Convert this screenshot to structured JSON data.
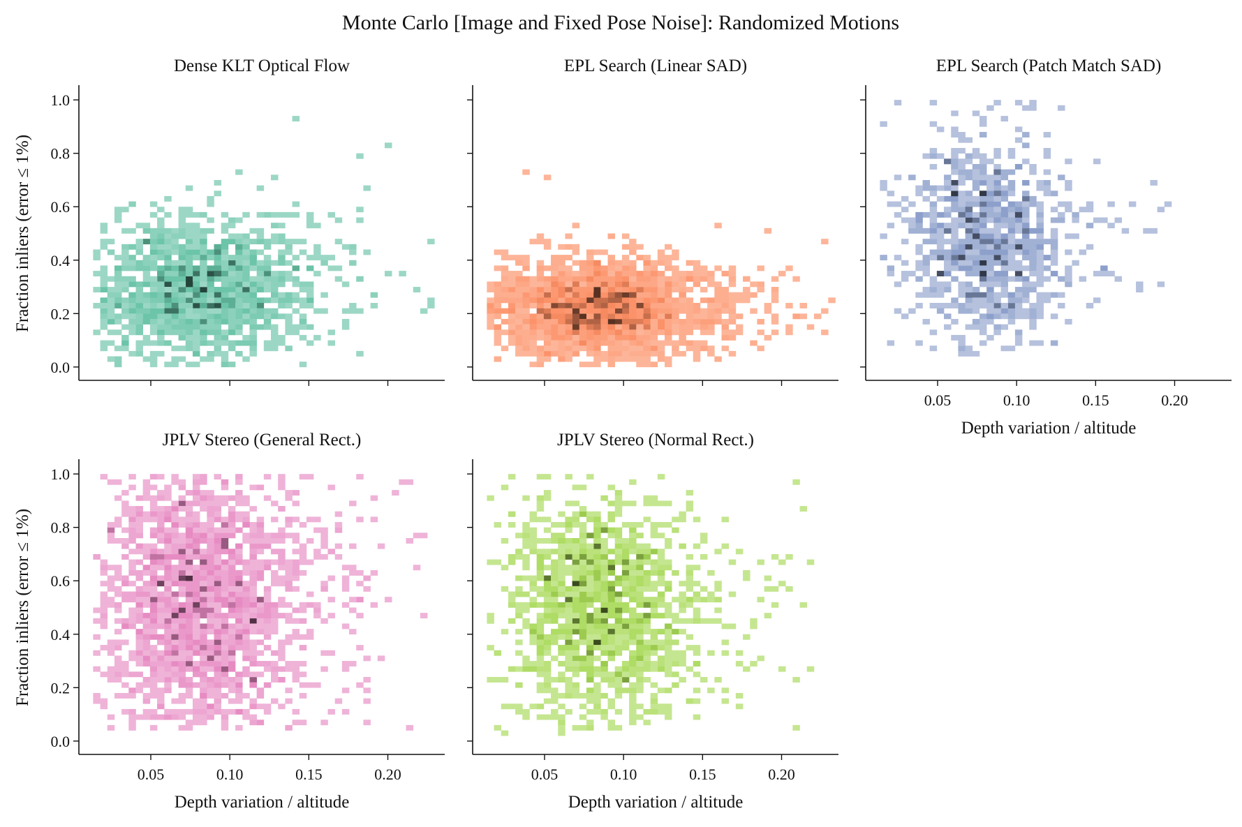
{
  "figure": {
    "title": "Monte Carlo [Image and Fixed Pose Noise]: Randomized Motions"
  },
  "chart_data": [
    {
      "type": "heatmap",
      "title": "Dense KLT Optical Flow",
      "color": "#66c2a5",
      "xlabel": "",
      "ylabel": "Fraction inliers (error ≤ 1%)",
      "xlim": [
        0.0045,
        0.236
      ],
      "ylim": [
        -0.05,
        1.05
      ],
      "xticks": [
        0.05,
        0.1,
        0.15,
        0.2
      ],
      "yticks": [
        0.0,
        0.2,
        0.4,
        0.6,
        0.8,
        1.0
      ],
      "xtick_labels": [],
      "ytick_labels": [
        "0.0",
        "0.2",
        "0.4",
        "0.6",
        "0.8",
        "1.0"
      ],
      "bin_width_x": 0.0045,
      "bin_height_y": 0.02,
      "cluster": {
        "x_center": 0.078,
        "y_center": 0.29,
        "x_spread": 0.034,
        "y_spread": 0.14
      },
      "x_range": [
        0.015,
        0.22
      ],
      "y_range": [
        0.0,
        0.93
      ],
      "count": 1500,
      "outliers": [
        [
          0.14,
          0.92
        ],
        [
          0.202,
          0.83
        ],
        [
          0.218,
          0.29
        ],
        [
          0.187,
          0.67
        ],
        [
          0.18,
          0.78
        ],
        [
          0.168,
          0.55
        ],
        [
          0.18,
          0.55
        ]
      ]
    },
    {
      "type": "heatmap",
      "title": "EPL Search (Linear SAD)",
      "color": "#fc8d62",
      "xlabel": "",
      "ylabel": "",
      "xlim": [
        0.0045,
        0.236
      ],
      "ylim": [
        -0.05,
        1.05
      ],
      "xticks": [
        0.05,
        0.1,
        0.15,
        0.2
      ],
      "yticks": [
        0.0,
        0.2,
        0.4,
        0.6,
        0.8,
        1.0
      ],
      "xtick_labels": [],
      "ytick_labels": [],
      "bin_width_x": 0.0045,
      "bin_height_y": 0.02,
      "cluster": {
        "x_center": 0.082,
        "y_center": 0.22,
        "x_spread": 0.036,
        "y_spread": 0.09
      },
      "x_range": [
        0.015,
        0.225
      ],
      "y_range": [
        0.0,
        0.72
      ],
      "count": 2200,
      "outliers": [
        [
          0.225,
          0.21
        ],
        [
          0.22,
          0.15
        ],
        [
          0.21,
          0.19
        ],
        [
          0.195,
          0.29
        ],
        [
          0.19,
          0.5
        ],
        [
          0.16,
          0.52
        ],
        [
          0.04,
          0.72
        ],
        [
          0.05,
          0.7
        ]
      ]
    },
    {
      "type": "heatmap",
      "title": "EPL Search (Patch Match SAD)",
      "color": "#8da0cb",
      "xlabel": "Depth variation / altitude",
      "ylabel": "",
      "xlim": [
        0.0045,
        0.236
      ],
      "ylim": [
        -0.05,
        1.05
      ],
      "xticks": [
        0.05,
        0.1,
        0.15,
        0.2
      ],
      "yticks": [
        0.0,
        0.2,
        0.4,
        0.6,
        0.8,
        1.0
      ],
      "xtick_labels": [
        "0.05",
        "0.10",
        "0.15",
        "0.20"
      ],
      "ytick_labels": [],
      "bin_width_x": 0.0045,
      "bin_height_y": 0.02,
      "cluster": {
        "x_center": 0.078,
        "y_center": 0.47,
        "x_spread": 0.026,
        "y_spread": 0.2
      },
      "x_range": [
        0.015,
        0.19
      ],
      "y_range": [
        0.05,
        1.0
      ],
      "count": 1000,
      "outliers": [
        [
          0.185,
          0.5
        ],
        [
          0.173,
          0.6
        ],
        [
          0.18,
          0.5
        ],
        [
          0.178,
          0.28
        ],
        [
          0.17,
          0.5
        ],
        [
          0.02,
          0.08
        ],
        [
          0.014,
          0.27
        ]
      ]
    },
    {
      "type": "heatmap",
      "title": "JPLV Stereo (General Rect.)",
      "color": "#e78ac3",
      "xlabel": "Depth variation / altitude",
      "ylabel": "Fraction inliers (error ≤ 1%)",
      "xlim": [
        0.0045,
        0.236
      ],
      "ylim": [
        -0.05,
        1.05
      ],
      "xticks": [
        0.05,
        0.1,
        0.15,
        0.2
      ],
      "yticks": [
        0.0,
        0.2,
        0.4,
        0.6,
        0.8,
        1.0
      ],
      "xtick_labels": [
        "0.05",
        "0.10",
        "0.15",
        "0.20"
      ],
      "ytick_labels": [
        "0.0",
        "0.2",
        "0.4",
        "0.6",
        "0.8",
        "1.0"
      ],
      "bin_width_x": 0.0045,
      "bin_height_y": 0.02,
      "cluster": {
        "x_center": 0.08,
        "y_center": 0.52,
        "x_spread": 0.032,
        "y_spread": 0.27
      },
      "x_range": [
        0.015,
        0.215
      ],
      "y_range": [
        0.05,
        1.0
      ],
      "count": 2100,
      "outliers": [
        [
          0.222,
          0.77
        ],
        [
          0.218,
          0.76
        ],
        [
          0.21,
          0.97
        ],
        [
          0.205,
          0.93
        ],
        [
          0.19,
          0.9
        ],
        [
          0.18,
          0.82
        ],
        [
          0.17,
          0.15
        ]
      ]
    },
    {
      "type": "heatmap",
      "title": "JPLV Stereo (Normal Rect.)",
      "color": "#a6d854",
      "xlabel": "Depth variation / altitude",
      "ylabel": "",
      "xlim": [
        0.0045,
        0.236
      ],
      "ylim": [
        -0.05,
        1.05
      ],
      "xticks": [
        0.05,
        0.1,
        0.15,
        0.2
      ],
      "yticks": [
        0.0,
        0.2,
        0.4,
        0.6,
        0.8,
        1.0
      ],
      "xtick_labels": [
        "0.05",
        "0.10",
        "0.15",
        "0.20"
      ],
      "ytick_labels": [],
      "bin_width_x": 0.0045,
      "bin_height_y": 0.02,
      "cluster": {
        "x_center": 0.082,
        "y_center": 0.5,
        "x_spread": 0.03,
        "y_spread": 0.22
      },
      "x_range": [
        0.015,
        0.21
      ],
      "y_range": [
        0.03,
        1.0
      ],
      "count": 1500,
      "outliers": [
        [
          0.21,
          0.96
        ],
        [
          0.205,
          0.57
        ],
        [
          0.2,
          0.66
        ],
        [
          0.185,
          0.31
        ],
        [
          0.175,
          0.17
        ],
        [
          0.02,
          0.05
        ],
        [
          0.025,
          0.03
        ]
      ]
    }
  ]
}
